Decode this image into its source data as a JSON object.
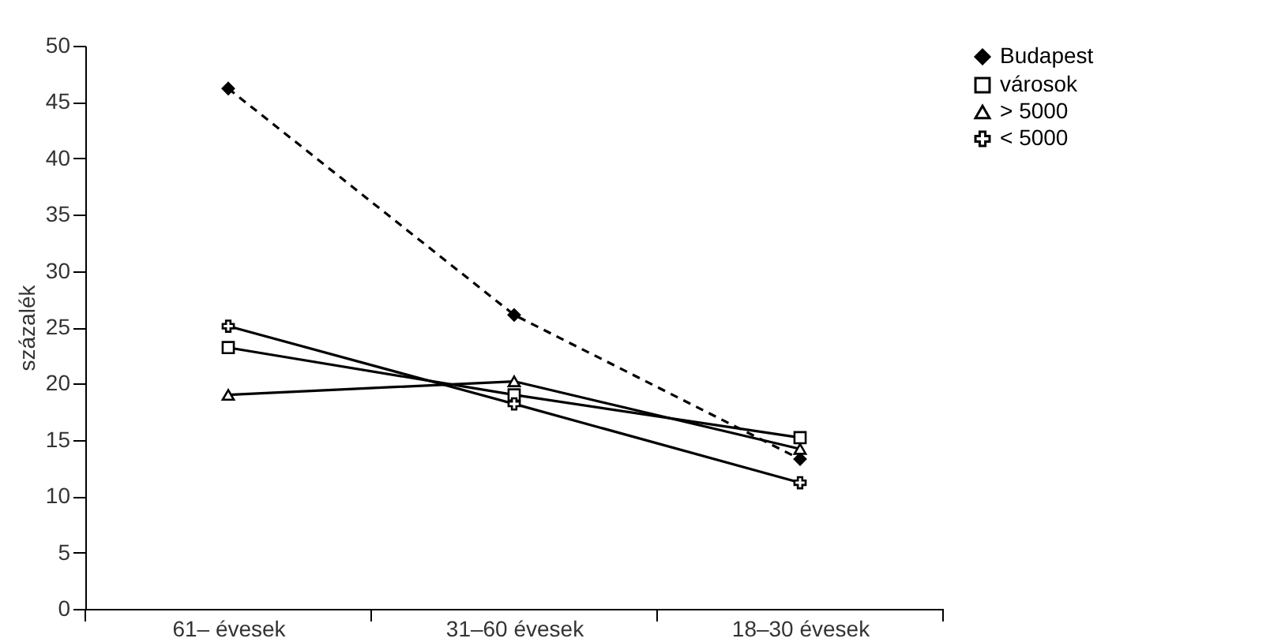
{
  "chart_data": {
    "type": "line",
    "ylabel": "százalék",
    "categories": [
      "61– évesek",
      "31–60 évesek",
      "18–30 évesek"
    ],
    "series": [
      {
        "name": "Budapest",
        "color": "#000000",
        "values": [
          46.2,
          26.1,
          13.3
        ],
        "line_style": "dashed",
        "marker": "diamond"
      },
      {
        "name": "városok",
        "color": "#000000",
        "values": [
          23.2,
          19.0,
          15.2
        ],
        "line_style": "solid",
        "marker": "square"
      },
      {
        "name": "> 5000",
        "color": "#000000",
        "values": [
          19.0,
          20.2,
          14.2
        ],
        "line_style": "solid",
        "marker": "triangle"
      },
      {
        "name": "< 5000",
        "color": "#000000",
        "values": [
          25.1,
          18.2,
          11.2
        ],
        "line_style": "solid",
        "marker": "cross"
      }
    ],
    "ylim": [
      0,
      50
    ],
    "yticks": [
      0,
      5,
      10,
      15,
      20,
      25,
      30,
      35,
      40,
      45,
      50
    ],
    "grid": false,
    "legend": "right"
  }
}
